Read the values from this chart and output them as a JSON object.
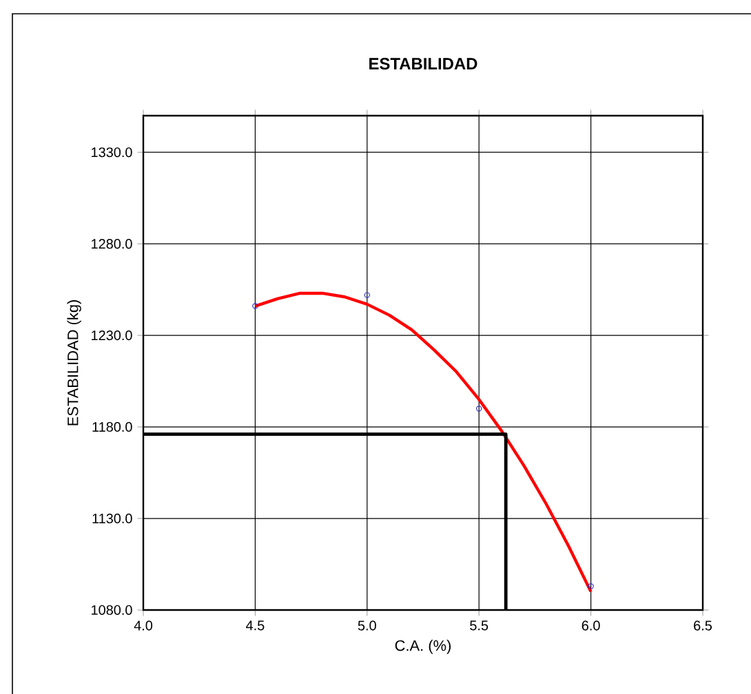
{
  "chart_data": {
    "type": "scatter",
    "title": "ESTABILIDAD",
    "xlabel": "C.A. (%)",
    "ylabel": "ESTABILIDAD  (kg)",
    "xlim": [
      4.0,
      6.5
    ],
    "ylim": [
      1080,
      1350
    ],
    "xticks": [
      {
        "value": 4.0,
        "label": "4.0"
      },
      {
        "value": 4.5,
        "label": "4.5"
      },
      {
        "value": 5.0,
        "label": "5.0"
      },
      {
        "value": 5.5,
        "label": "5.5"
      },
      {
        "value": 6.0,
        "label": "6.0"
      },
      {
        "value": 6.5,
        "label": "6.5"
      }
    ],
    "yticks": [
      {
        "value": 1080,
        "label": "1080.0"
      },
      {
        "value": 1130,
        "label": "1130.0"
      },
      {
        "value": 1180,
        "label": "1180.0"
      },
      {
        "value": 1230,
        "label": "1230.0"
      },
      {
        "value": 1280,
        "label": "1280.0"
      },
      {
        "value": 1330,
        "label": "1330.0"
      }
    ],
    "grid": true,
    "series": [
      {
        "color": "#3333cc",
        "marker": "circle",
        "x": [
          4.5,
          5.0,
          5.5,
          6.0
        ],
        "values": [
          1246,
          1252,
          1190,
          1093
        ]
      },
      {
        "type": "line",
        "color": "#ff0000",
        "x": [
          4.5,
          4.6,
          4.7,
          4.8,
          4.9,
          5.0,
          5.1,
          5.2,
          5.3,
          5.4,
          5.5,
          5.6,
          5.7,
          5.8,
          5.9,
          6.0
        ],
        "values": [
          1246,
          1250,
          1253,
          1253,
          1251,
          1247,
          1241,
          1233,
          1222,
          1210,
          1195,
          1178,
          1159,
          1138,
          1115,
          1090
        ]
      },
      {
        "type": "line",
        "color": "#000000",
        "x": [
          4.0,
          5.62,
          5.62
        ],
        "values": [
          1176,
          1176,
          1080
        ]
      }
    ]
  }
}
